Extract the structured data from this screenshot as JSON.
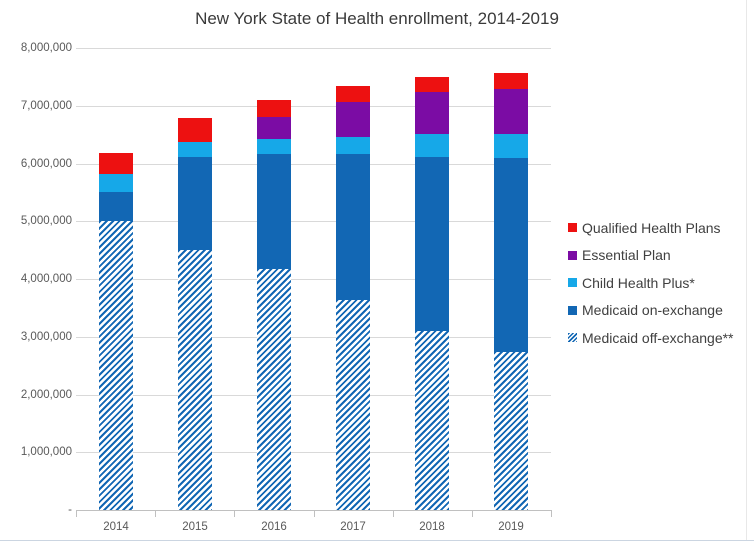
{
  "title": "New York State of Health enrollment, 2014-2019",
  "colors": {
    "qhp": "#ed1111",
    "essential_plan": "#7b0ca4",
    "child_health_plus": "#16a8e8",
    "medicaid_on": "#1267b4",
    "medicaid_off_stripe": "#1267b4",
    "gridline": "#d9d9d9",
    "axis": "#c0c0c0",
    "title_text": "#3a3a3a",
    "label_text": "#595959",
    "legend_text": "#404040"
  },
  "y_axis": {
    "tick_labels": [
      "8,000,000",
      "7,000,000",
      "6,000,000",
      "5,000,000",
      "4,000,000",
      "3,000,000",
      "2,000,000",
      "1,000,000",
      "-"
    ]
  },
  "chart_data": {
    "type": "bar",
    "stacked": true,
    "title": "New York State of Health enrollment, 2014-2019",
    "categories": [
      "2014",
      "2015",
      "2016",
      "2017",
      "2018",
      "2019"
    ],
    "series": [
      {
        "key": "medicaid_off",
        "name": "Medicaid off-exchange**",
        "color": "#1267b4",
        "pattern": "diagonal-stripes",
        "values": [
          5000000,
          4510000,
          4180000,
          3630000,
          3100000,
          2740000
        ]
      },
      {
        "key": "medicaid_on",
        "name": "Medicaid on-exchange",
        "color": "#1267b4",
        "pattern": "solid",
        "values": [
          510000,
          1600000,
          1980000,
          2540000,
          3010000,
          3350000
        ]
      },
      {
        "key": "chp",
        "name": "Child Health Plus*",
        "color": "#16a8e8",
        "pattern": "solid",
        "values": [
          310000,
          270000,
          270000,
          290000,
          400000,
          420000
        ]
      },
      {
        "key": "essential",
        "name": "Essential Plan",
        "color": "#7b0ca4",
        "pattern": "solid",
        "values": [
          0,
          0,
          380000,
          600000,
          720000,
          780000
        ]
      },
      {
        "key": "qhp",
        "name": "Qualified Health Plans",
        "color": "#ed1111",
        "pattern": "solid",
        "values": [
          360000,
          410000,
          290000,
          290000,
          270000,
          270000
        ]
      }
    ],
    "totals": [
      6180000,
      6790000,
      7100000,
      7350000,
      7500000,
      7560000
    ],
    "ylim": [
      0,
      8000000
    ],
    "grid": true,
    "legend_position": "right"
  },
  "legend": {
    "items": [
      {
        "key": "qhp",
        "label": "Qualified Health Plans",
        "swatch": "solid",
        "color": "#ed1111"
      },
      {
        "key": "essential",
        "label": "Essential Plan",
        "swatch": "solid",
        "color": "#7b0ca4"
      },
      {
        "key": "chp",
        "label": "Child Health Plus*",
        "swatch": "solid",
        "color": "#16a8e8"
      },
      {
        "key": "medicaid_on",
        "label": "Medicaid on-exchange",
        "swatch": "solid",
        "color": "#1267b4"
      },
      {
        "key": "medicaid_off",
        "label": "Medicaid off-exchange**",
        "swatch": "hatch",
        "color": "#1267b4"
      }
    ]
  }
}
